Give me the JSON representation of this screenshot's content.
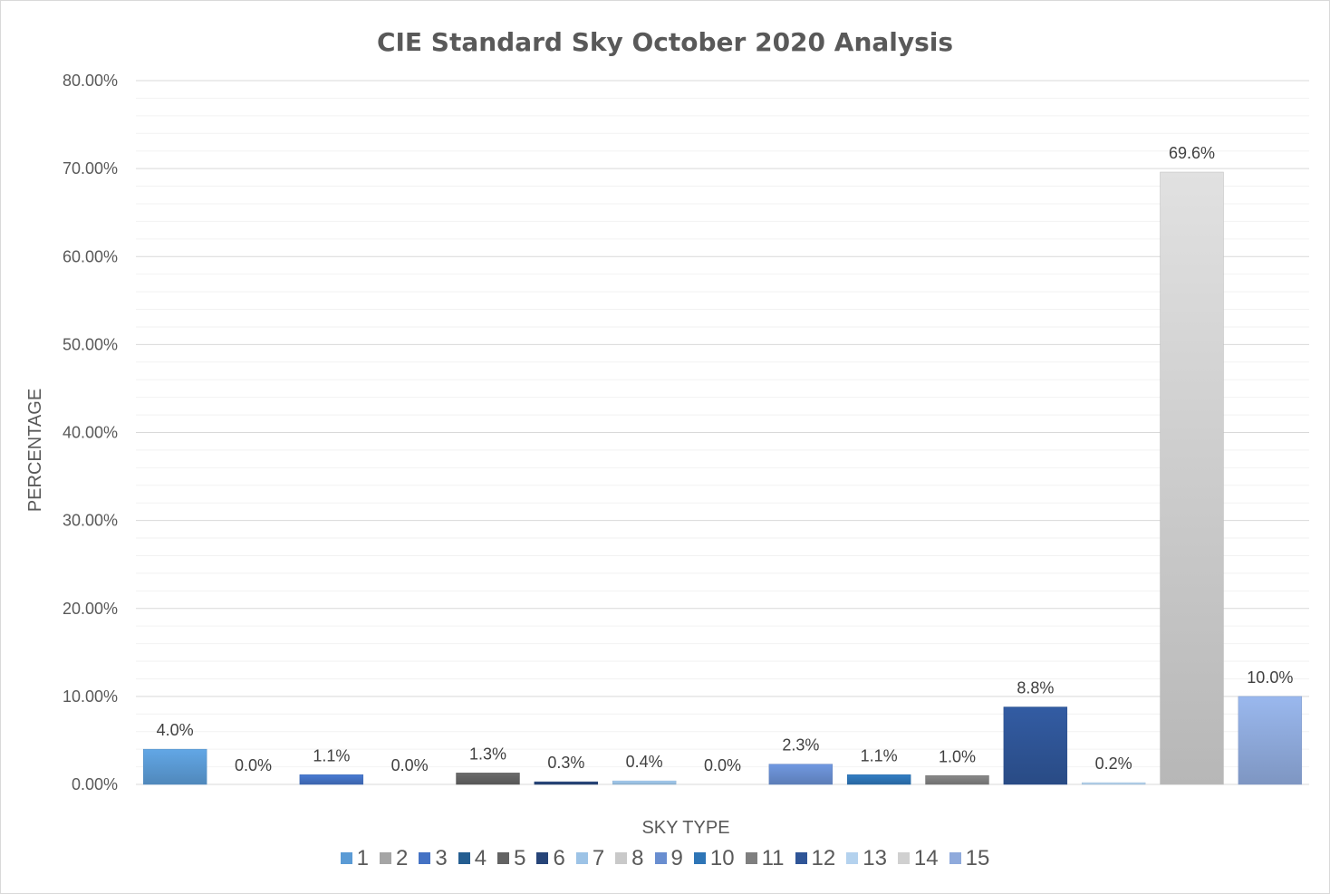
{
  "chart_data": {
    "type": "bar",
    "title": "CIE Standard Sky October 2020 Analysis",
    "xlabel": "SKY TYPE",
    "ylabel": "PERCENTAGE",
    "ylim": [
      0,
      80
    ],
    "yticks": [
      "0.00%",
      "10.00%",
      "20.00%",
      "30.00%",
      "40.00%",
      "50.00%",
      "60.00%",
      "70.00%",
      "80.00%"
    ],
    "grid": true,
    "legend_position": "bottom",
    "categories": [
      "1",
      "2",
      "3",
      "4",
      "5",
      "6",
      "7",
      "8",
      "9",
      "10",
      "11",
      "12",
      "13",
      "14",
      "15"
    ],
    "values": [
      4.0,
      0.0,
      1.1,
      0.0,
      1.3,
      0.3,
      0.4,
      0.0,
      2.3,
      1.1,
      1.0,
      8.8,
      0.2,
      69.6,
      10.0
    ],
    "data_labels": [
      "4.0%",
      "0.0%",
      "1.1%",
      "0.0%",
      "1.3%",
      "0.3%",
      "0.4%",
      "0.0%",
      "2.3%",
      "1.1%",
      "1.0%",
      "8.8%",
      "0.2%",
      "69.6%",
      "10.0%"
    ],
    "colors": [
      "#5b9bd5",
      "#a5a5a5",
      "#4472c4",
      "#255e91",
      "#636363",
      "#264478",
      "#9dc3e6",
      "#c9c9c9",
      "#698ed0",
      "#2e75b6",
      "#7f7f7f",
      "#2f5597",
      "#b4d2ee",
      "#d0d0d0",
      "#8faadc"
    ]
  }
}
